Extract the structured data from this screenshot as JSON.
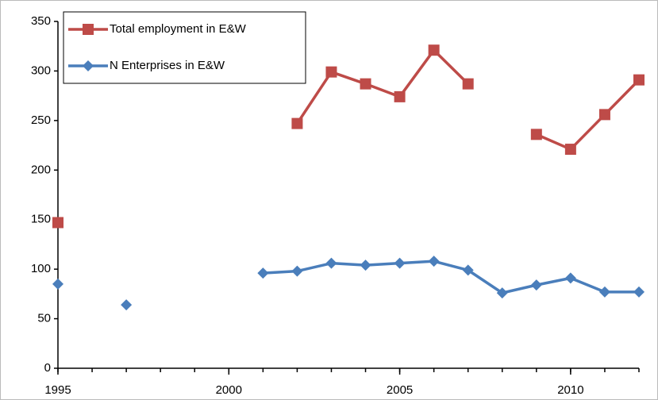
{
  "chart_data": {
    "type": "line",
    "x": [
      1995,
      1996,
      1997,
      1998,
      1999,
      2000,
      2001,
      2002,
      2003,
      2004,
      2005,
      2006,
      2007,
      2008,
      2009,
      2010,
      2011,
      2012
    ],
    "series": [
      {
        "name": "Total employment  in E&W",
        "color": "#be4b48",
        "marker": "square",
        "values": [
          147,
          null,
          null,
          null,
          null,
          null,
          null,
          247,
          299,
          287,
          274,
          321,
          287,
          null,
          236,
          221,
          256,
          291
        ]
      },
      {
        "name": "N Enterprises in E&W",
        "color": "#4a7ebb",
        "marker": "diamond",
        "values": [
          85,
          null,
          64,
          null,
          null,
          null,
          96,
          98,
          106,
          104,
          106,
          108,
          99,
          76,
          84,
          91,
          77,
          77
        ]
      }
    ],
    "xlim": [
      1995,
      2012
    ],
    "xticks": [
      1995,
      2000,
      2005,
      2010
    ],
    "ylim": [
      0,
      350
    ],
    "yticks": [
      0,
      50,
      100,
      150,
      200,
      250,
      300,
      350
    ],
    "grid": false,
    "legend": "upper left"
  }
}
